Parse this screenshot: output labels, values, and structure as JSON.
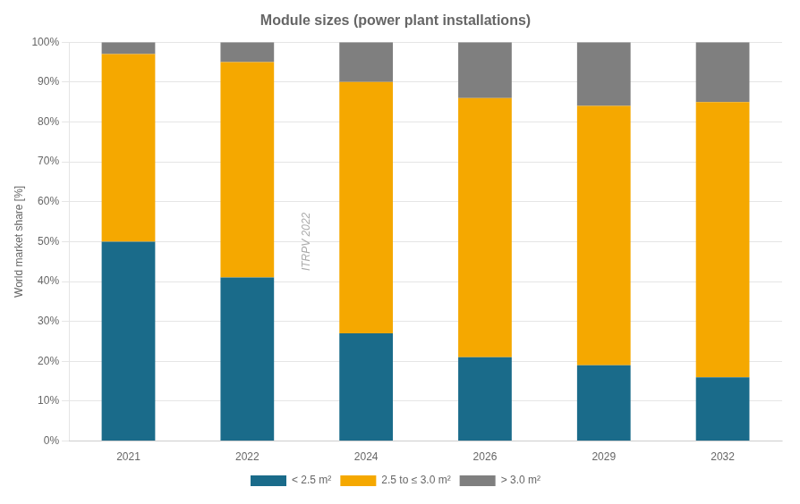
{
  "chart_data": {
    "type": "bar",
    "title": "Module sizes (power plant installations)",
    "ylabel": "World market share [%]",
    "categories": [
      "2021",
      "2022",
      "2024",
      "2026",
      "2029",
      "2032"
    ],
    "series": [
      {
        "name": "< 2.5 m²",
        "color": "#1a6b8a",
        "values": [
          50,
          41,
          27,
          21,
          19,
          16
        ]
      },
      {
        "name": "2.5 to ≤ 3.0 m²",
        "color": "#f5a800",
        "values": [
          47,
          54,
          63,
          65,
          65,
          69
        ]
      },
      {
        "name": "> 3.0 m²",
        "color": "#7f7f7f",
        "values": [
          3,
          5,
          10,
          14,
          16,
          15
        ]
      }
    ],
    "stacked": true,
    "ylim": [
      0,
      100
    ],
    "yticks": [
      {
        "value": 0,
        "label": "0%"
      },
      {
        "value": 10,
        "label": "10%"
      },
      {
        "value": 20,
        "label": "20%"
      },
      {
        "value": 30,
        "label": "30%"
      },
      {
        "value": 40,
        "label": "40%"
      },
      {
        "value": 50,
        "label": "50%"
      },
      {
        "value": 60,
        "label": "60%"
      },
      {
        "value": 70,
        "label": "70%"
      },
      {
        "value": 80,
        "label": "80%"
      },
      {
        "value": 90,
        "label": "90%"
      },
      {
        "value": 100,
        "label": "100%"
      }
    ],
    "grid": true,
    "legend": "bottom",
    "annotations": [
      "ITRPV 2022"
    ]
  }
}
